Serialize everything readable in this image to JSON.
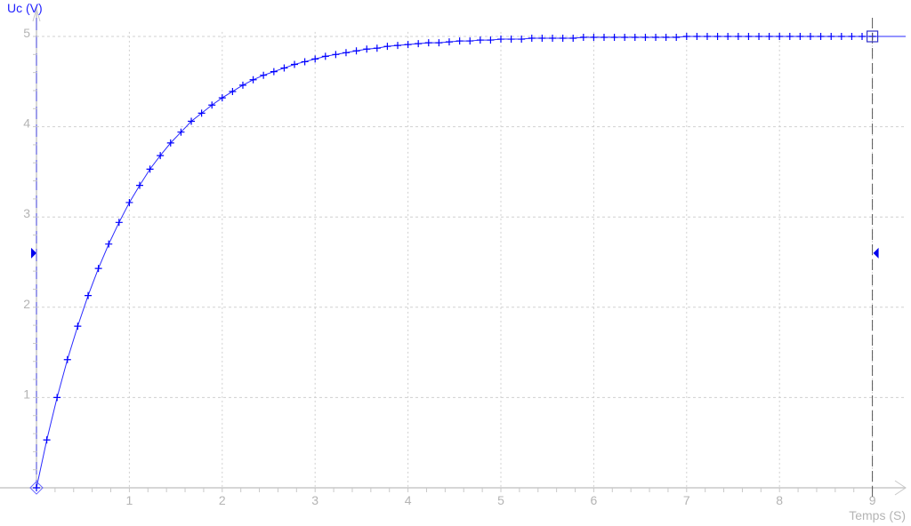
{
  "chart_data": {
    "type": "line",
    "title": "",
    "xlabel": "Temps (S)",
    "ylabel": "Uc (V)",
    "xlim": [
      0,
      9.2
    ],
    "ylim": [
      0,
      5.05
    ],
    "x_ticks": [
      "1",
      "2",
      "3",
      "4",
      "5",
      "6",
      "7",
      "8",
      "9"
    ],
    "y_ticks": [
      "1",
      "2",
      "3",
      "4",
      "5"
    ],
    "grid": true,
    "colors": {
      "series": "#2a2aff",
      "axis": "#c8c8c8",
      "grid": "#d0d0d0",
      "cursor": "#555555",
      "marker": "#0000ff"
    },
    "cursor": {
      "x": 9,
      "y": 5
    },
    "level_markers_y": 2.6,
    "series": [
      {
        "x": [
          0,
          0.111,
          0.222,
          0.333,
          0.444,
          0.556,
          0.667,
          0.778,
          0.889,
          1,
          1.111,
          1.222,
          1.333,
          1.444,
          1.556,
          1.667,
          1.778,
          1.889,
          2,
          2.111,
          2.222,
          2.333,
          2.444,
          2.556,
          2.667,
          2.778,
          2.889,
          3,
          3.111,
          3.222,
          3.333,
          3.444,
          3.556,
          3.667,
          3.778,
          3.889,
          4,
          4.111,
          4.222,
          4.333,
          4.444,
          4.556,
          4.667,
          4.778,
          4.889,
          5,
          5.111,
          5.222,
          5.333,
          5.444,
          5.556,
          5.667,
          5.778,
          5.889,
          6,
          6.111,
          6.222,
          6.333,
          6.444,
          6.556,
          6.667,
          6.778,
          6.889,
          7,
          7.111,
          7.222,
          7.333,
          7.444,
          7.556,
          7.667,
          7.778,
          7.889,
          8,
          8.111,
          8.222,
          8.333,
          8.444,
          8.556,
          8.667,
          8.778,
          8.889,
          9
        ],
        "y": [
          0,
          0.53,
          1.0,
          1.42,
          1.79,
          2.13,
          2.43,
          2.7,
          2.94,
          3.16,
          3.35,
          3.53,
          3.68,
          3.82,
          3.94,
          4.06,
          4.15,
          4.24,
          4.32,
          4.39,
          4.46,
          4.52,
          4.57,
          4.61,
          4.65,
          4.69,
          4.72,
          4.75,
          4.78,
          4.8,
          4.82,
          4.84,
          4.86,
          4.87,
          4.89,
          4.9,
          4.91,
          4.92,
          4.93,
          4.93,
          4.94,
          4.95,
          4.95,
          4.96,
          4.96,
          4.97,
          4.97,
          4.97,
          4.98,
          4.98,
          4.98,
          4.98,
          4.98,
          4.99,
          4.99,
          4.99,
          4.99,
          4.99,
          4.99,
          4.99,
          4.99,
          4.99,
          4.99,
          5.0,
          5.0,
          5.0,
          5.0,
          5.0,
          5.0,
          5.0,
          5.0,
          5.0,
          5.0,
          5.0,
          5.0,
          5.0,
          5.0,
          5.0,
          5.0,
          5.0,
          5.0,
          5.0
        ]
      }
    ]
  }
}
